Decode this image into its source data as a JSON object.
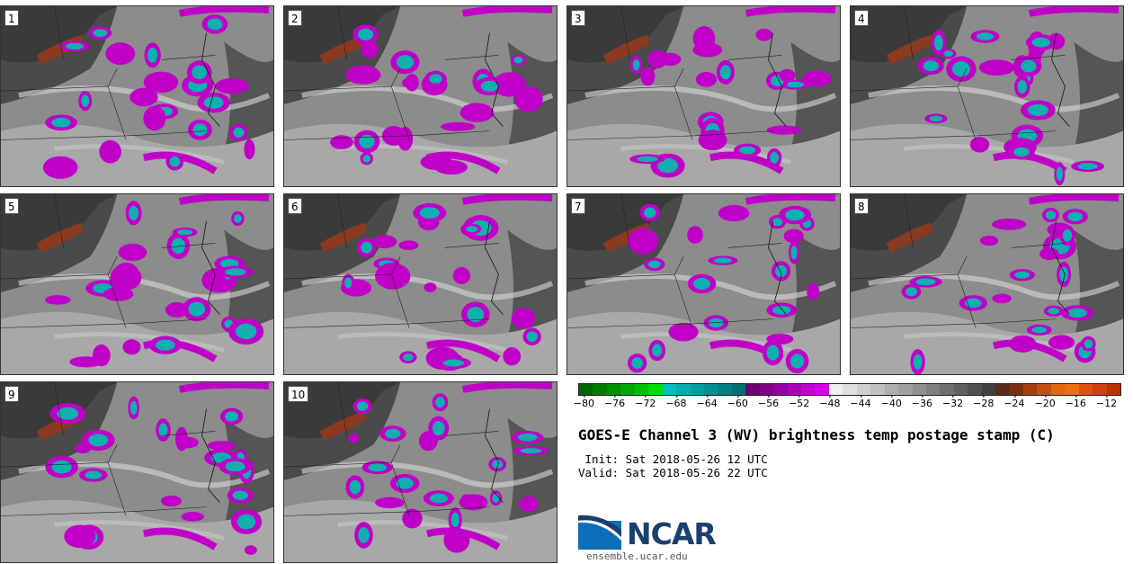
{
  "panels": [
    {
      "label": "1"
    },
    {
      "label": "2"
    },
    {
      "label": "3"
    },
    {
      "label": "4"
    },
    {
      "label": "5"
    },
    {
      "label": "6"
    },
    {
      "label": "7"
    },
    {
      "label": "8"
    },
    {
      "label": "9"
    },
    {
      "label": "10"
    }
  ],
  "colorbar": {
    "colors": [
      "#006400",
      "#007a00",
      "#009000",
      "#00a800",
      "#00c000",
      "#00e000",
      "#00c0c0",
      "#00b0b0",
      "#00a0a0",
      "#009090",
      "#008080",
      "#007070",
      "#6a0070",
      "#800088",
      "#9600a0",
      "#ac00b8",
      "#c200d0",
      "#d800e8",
      "#f0f0f0",
      "#e0e0e0",
      "#d0d0d0",
      "#c0c0c0",
      "#b0b0b0",
      "#a0a0a0",
      "#909090",
      "#808080",
      "#707070",
      "#606060",
      "#505050",
      "#404040",
      "#5a2a1a",
      "#7a3015",
      "#a04010",
      "#c05010",
      "#e06810",
      "#f07010",
      "#e05010",
      "#d04010",
      "#c03000"
    ],
    "ticks": [
      "−80",
      "−76",
      "−72",
      "−68",
      "−64",
      "−60",
      "−56",
      "−52",
      "−48",
      "−44",
      "−40",
      "−36",
      "−32",
      "−28",
      "−24",
      "−20",
      "−16",
      "−12"
    ],
    "min": -82,
    "max": -10
  },
  "title": "GOES-E Channel 3 (WV) brightness temp postage stamp (C)",
  "init": " Init: Sat 2018-05-26 12 UTC",
  "valid": "Valid: Sat 2018-05-26 22 UTC",
  "logo_text": "NCAR",
  "url": "ensemble.ucar.edu"
}
